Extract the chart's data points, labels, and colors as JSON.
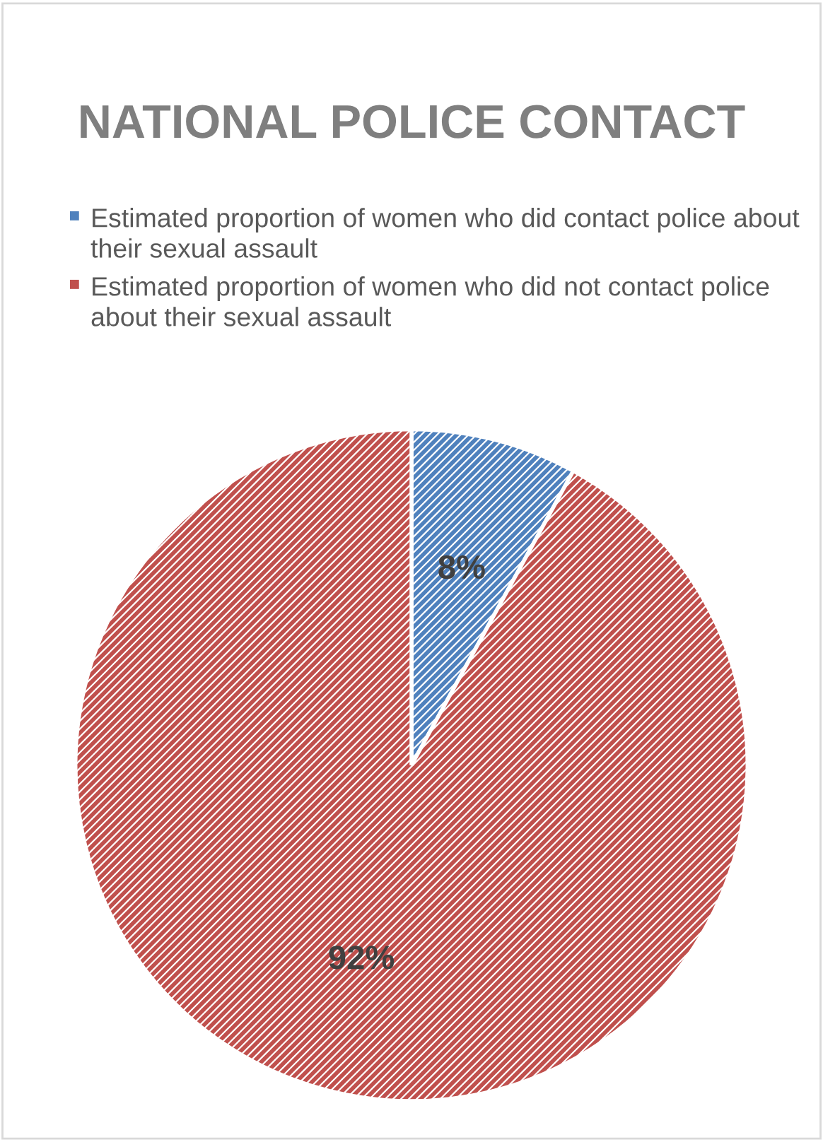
{
  "chart_data": {
    "type": "pie",
    "title": "NATIONAL POLICE CONTACT",
    "categories": [
      "Estimated proportion of women who did contact police about their sexual assault",
      "Estimated proportion of women who did not contact police about their sexual assault"
    ],
    "values": [
      8,
      92
    ],
    "colors": [
      "#4f81bd",
      "#c0504d"
    ],
    "value_labels": [
      "8%",
      "92%"
    ],
    "legend": "top"
  }
}
